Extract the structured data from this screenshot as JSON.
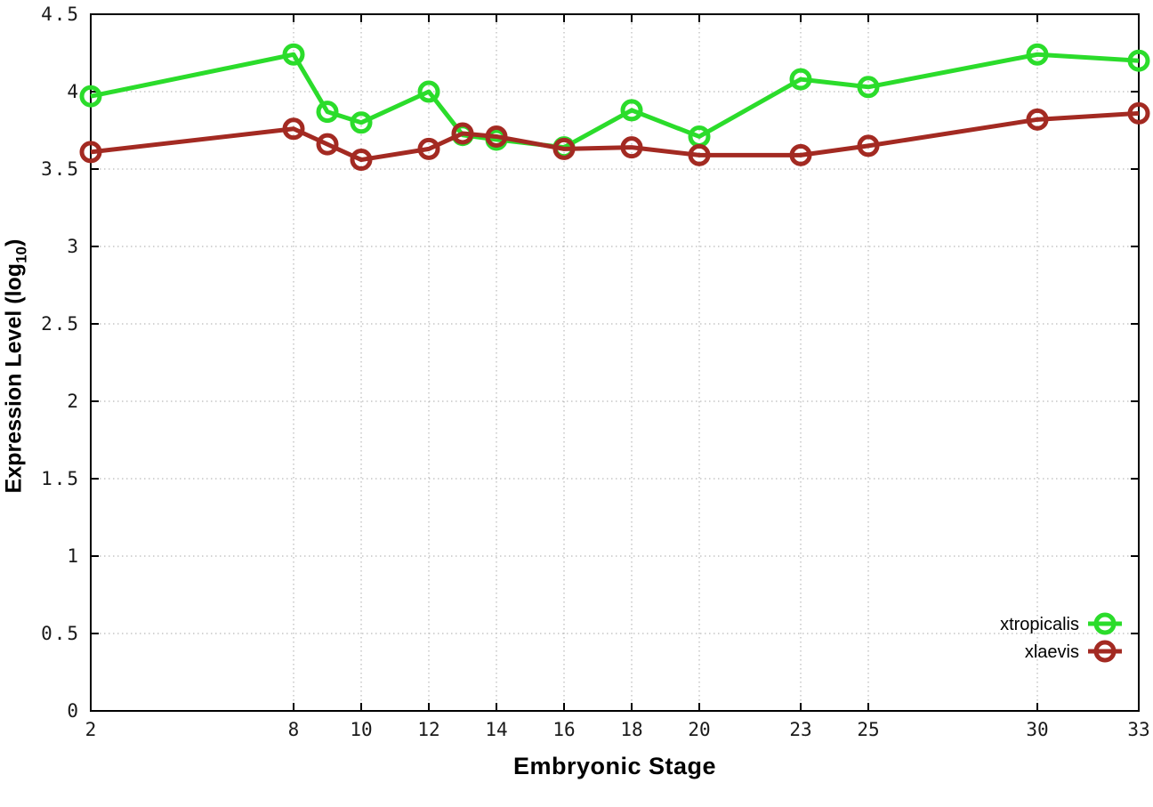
{
  "axes": {
    "xlabel": "Embryonic Stage",
    "ylabel_prefix": "Expression Level (log",
    "ylabel_subscript": "10",
    "ylabel_suffix": ")"
  },
  "chart_data": {
    "type": "line",
    "xlabel": "Embryonic Stage",
    "ylabel": "Expression Level (log10)",
    "xlim": [
      2,
      33
    ],
    "ylim": [
      0,
      4.5
    ],
    "x_ticks": [
      2,
      8,
      10,
      12,
      14,
      16,
      18,
      20,
      23,
      25,
      30,
      33
    ],
    "y_ticks": [
      0,
      0.5,
      1,
      1.5,
      2,
      2.5,
      3,
      3.5,
      4,
      4.5
    ],
    "grid": "dotted",
    "legend_position": "bottom-right",
    "x": [
      2,
      8,
      9,
      10,
      12,
      13,
      14,
      16,
      18,
      20,
      23,
      25,
      30,
      33
    ],
    "series": [
      {
        "name": "xtropicalis",
        "color": "#2bdc2b",
        "values": [
          3.97,
          4.24,
          3.87,
          3.8,
          4.0,
          3.72,
          3.69,
          3.64,
          3.88,
          3.71,
          4.08,
          4.03,
          4.24,
          4.2
        ]
      },
      {
        "name": "xlaevis",
        "color": "#a32a22",
        "values": [
          3.61,
          3.76,
          3.66,
          3.56,
          3.63,
          3.73,
          3.71,
          3.63,
          3.64,
          3.59,
          3.59,
          3.65,
          3.82,
          3.86
        ]
      }
    ],
    "style": {
      "line_width": 5,
      "marker": "open-circle",
      "marker_radius": 10,
      "marker_stroke": 5,
      "grid_color": "#aaaaaa",
      "border_color": "#000000",
      "tick_label_color": "#1a1a1a"
    }
  }
}
